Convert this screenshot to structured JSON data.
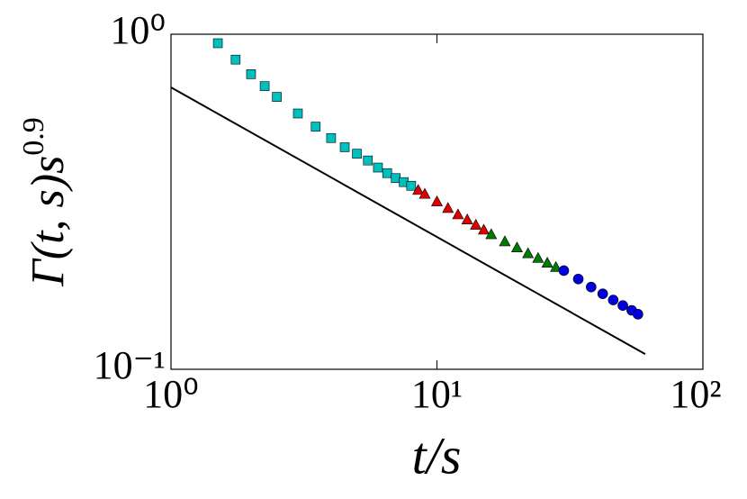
{
  "chart_data": {
    "type": "scatter",
    "xlabel": "t/s",
    "ylabel": {
      "text": "Γ(t, s)s",
      "exponent": "0.9"
    },
    "xscale": "log",
    "yscale": "log",
    "xlim": [
      1,
      100
    ],
    "ylim": [
      0.1,
      1
    ],
    "xticks": [
      {
        "value": 1,
        "label": "10⁰"
      },
      {
        "value": 10,
        "label": "10¹"
      },
      {
        "value": 100,
        "label": "10²"
      }
    ],
    "yticks": [
      {
        "value": 0.1,
        "label": "10⁻¹"
      },
      {
        "value": 1,
        "label": "10⁰"
      }
    ],
    "series": [
      {
        "color": "#00bfbf",
        "marker": "square",
        "x": [
          1.5,
          1.75,
          2,
          2.25,
          2.5,
          3,
          3.5,
          4,
          4.5,
          5,
          5.5,
          6,
          6.5,
          7,
          7.5,
          8
        ],
        "values": [
          0.94,
          0.84,
          0.76,
          0.7,
          0.65,
          0.58,
          0.53,
          0.49,
          0.46,
          0.44,
          0.42,
          0.4,
          0.385,
          0.372,
          0.362,
          0.353
        ]
      },
      {
        "color": "#e00000",
        "marker": "triangle",
        "x": [
          8.5,
          9,
          10,
          11,
          12,
          13,
          14,
          15
        ],
        "values": [
          0.343,
          0.334,
          0.317,
          0.303,
          0.29,
          0.28,
          0.27,
          0.261
        ]
      },
      {
        "color": "#007a00",
        "marker": "triangle",
        "x": [
          16,
          18,
          20,
          22,
          24,
          26,
          28
        ],
        "values": [
          0.253,
          0.241,
          0.231,
          0.222,
          0.215,
          0.208,
          0.202
        ]
      },
      {
        "color": "#0000e0",
        "marker": "circle",
        "x": [
          30,
          34,
          38,
          42,
          46,
          50,
          54,
          57
        ],
        "values": [
          0.197,
          0.186,
          0.176,
          0.168,
          0.161,
          0.155,
          0.15,
          0.146
        ]
      },
      {
        "color": "#000000",
        "marker": "line",
        "x": [
          1,
          60.7
        ],
        "values": [
          0.694,
          0.111
        ]
      }
    ]
  }
}
